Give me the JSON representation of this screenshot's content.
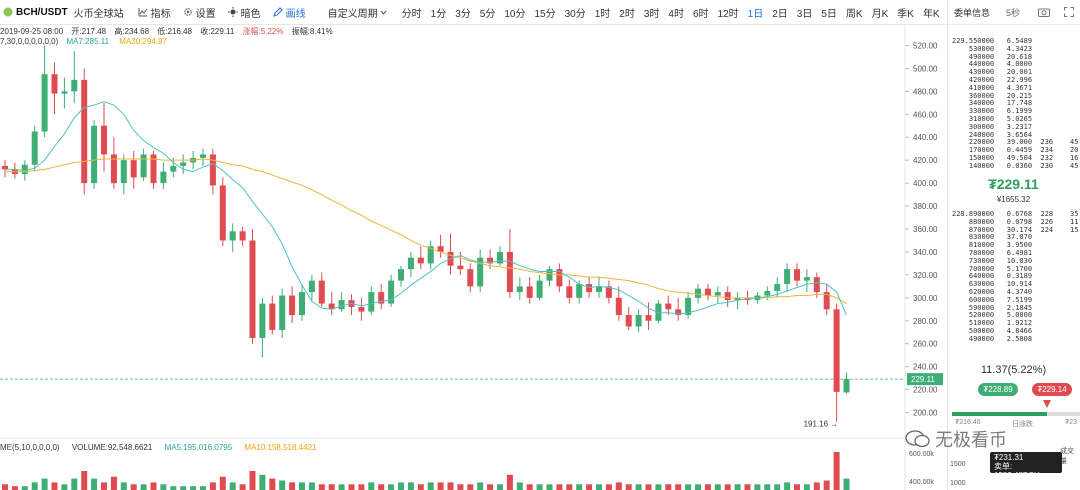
{
  "toolbar": {
    "symbol": "BCH/USDT",
    "exchange": "火币全球站",
    "indicator": "指标",
    "settings": "设置",
    "theme": "暗色",
    "draw": "画线",
    "custom_period": "自定义周期",
    "intervals": [
      "分时",
      "1分",
      "3分",
      "5分",
      "10分",
      "15分",
      "30分",
      "1时",
      "2时",
      "3时",
      "4时",
      "6时",
      "12时",
      "1日",
      "2日",
      "3日",
      "5日",
      "周K",
      "月K",
      "季K",
      "年K"
    ],
    "active_interval": "1日",
    "right_label": "5秒"
  },
  "ohlc": {
    "date": "2019-09-25 08:00",
    "open_label": "开:217.48",
    "high_label": "高:234.68",
    "low_label": "低:216.48",
    "close_label": "收:229.11",
    "change_label": "涨幅:5.22%",
    "amplitude_label": "振幅:8.41%"
  },
  "ma": {
    "params": "7,30,0,0,0,0,0,0)",
    "ma7_label": "MA7:285.11",
    "ma30_label": "MA30:294.97"
  },
  "volume_info": {
    "params": "ME(5,10,0,0,0,0)",
    "volume_label": "VOLUME:92,548.6621",
    "ma5_label": "MA5:195,016.0795",
    "ma10_label": "MA10:158,518.4421"
  },
  "price_axis": {
    "labels": [
      "520.00",
      "500.00",
      "480.00",
      "460.00",
      "440.00",
      "420.00",
      "400.00",
      "380.00",
      "360.00",
      "340.00",
      "320.00",
      "300.00",
      "280.00",
      "260.00",
      "240.00",
      "220.00",
      "200.00"
    ],
    "current_price_tag": "229.11",
    "low_annotation": "191.16 →",
    "volume_axis": [
      "600.00k",
      "400.00k"
    ]
  },
  "chart_data": {
    "type": "candlestick",
    "y_min": 190,
    "y_max": 530,
    "last_price": 229.11,
    "low_marker": 191.16,
    "candles": [
      [
        415,
        420,
        405,
        412
      ],
      [
        412,
        418,
        404,
        408
      ],
      [
        408,
        420,
        402,
        416
      ],
      [
        416,
        450,
        410,
        445
      ],
      [
        445,
        520,
        440,
        495
      ],
      [
        495,
        505,
        460,
        478
      ],
      [
        478,
        492,
        465,
        480
      ],
      [
        480,
        515,
        470,
        490
      ],
      [
        490,
        500,
        390,
        400
      ],
      [
        400,
        455,
        395,
        450
      ],
      [
        450,
        470,
        410,
        425
      ],
      [
        425,
        440,
        395,
        400
      ],
      [
        400,
        425,
        390,
        420
      ],
      [
        420,
        428,
        395,
        405
      ],
      [
        405,
        430,
        402,
        425
      ],
      [
        425,
        428,
        395,
        400
      ],
      [
        400,
        418,
        395,
        410
      ],
      [
        410,
        422,
        405,
        415
      ],
      [
        415,
        425,
        408,
        418
      ],
      [
        418,
        428,
        412,
        422
      ],
      [
        422,
        430,
        415,
        425
      ],
      [
        425,
        430,
        390,
        398
      ],
      [
        398,
        405,
        345,
        350
      ],
      [
        350,
        365,
        340,
        358
      ],
      [
        358,
        362,
        345,
        350
      ],
      [
        350,
        360,
        260,
        265
      ],
      [
        265,
        300,
        248,
        295
      ],
      [
        295,
        302,
        268,
        272
      ],
      [
        272,
        308,
        265,
        302
      ],
      [
        302,
        310,
        278,
        285
      ],
      [
        285,
        312,
        280,
        305
      ],
      [
        305,
        320,
        298,
        315
      ],
      [
        315,
        322,
        292,
        295
      ],
      [
        295,
        305,
        285,
        290
      ],
      [
        290,
        305,
        288,
        298
      ],
      [
        298,
        303,
        285,
        292
      ],
      [
        292,
        300,
        280,
        288
      ],
      [
        288,
        310,
        285,
        305
      ],
      [
        305,
        312,
        290,
        295
      ],
      [
        295,
        320,
        292,
        315
      ],
      [
        315,
        328,
        310,
        325
      ],
      [
        325,
        340,
        318,
        335
      ],
      [
        335,
        345,
        325,
        330
      ],
      [
        330,
        350,
        325,
        345
      ],
      [
        345,
        355,
        335,
        340
      ],
      [
        340,
        356,
        320,
        328
      ],
      [
        328,
        340,
        320,
        325
      ],
      [
        325,
        330,
        305,
        310
      ],
      [
        310,
        342,
        305,
        335
      ],
      [
        335,
        342,
        325,
        330
      ],
      [
        330,
        345,
        328,
        340
      ],
      [
        340,
        360,
        300,
        305
      ],
      [
        305,
        318,
        298,
        310
      ],
      [
        310,
        318,
        295,
        300
      ],
      [
        300,
        320,
        298,
        315
      ],
      [
        315,
        328,
        310,
        325
      ],
      [
        325,
        330,
        305,
        310
      ],
      [
        310,
        316,
        295,
        300
      ],
      [
        300,
        315,
        295,
        312
      ],
      [
        312,
        318,
        300,
        305
      ],
      [
        305,
        318,
        300,
        310
      ],
      [
        310,
        315,
        295,
        300
      ],
      [
        300,
        310,
        280,
        285
      ],
      [
        285,
        292,
        272,
        275
      ],
      [
        275,
        290,
        270,
        285
      ],
      [
        285,
        296,
        272,
        280
      ],
      [
        280,
        298,
        278,
        295
      ],
      [
        295,
        302,
        285,
        290
      ],
      [
        290,
        300,
        280,
        285
      ],
      [
        285,
        305,
        282,
        300
      ],
      [
        300,
        312,
        295,
        308
      ],
      [
        308,
        312,
        298,
        302
      ],
      [
        302,
        310,
        295,
        305
      ],
      [
        305,
        310,
        292,
        298
      ],
      [
        298,
        305,
        290,
        300
      ],
      [
        300,
        306,
        294,
        298
      ],
      [
        298,
        305,
        295,
        302
      ],
      [
        302,
        310,
        298,
        306
      ],
      [
        306,
        318,
        300,
        312
      ],
      [
        312,
        330,
        305,
        325
      ],
      [
        325,
        330,
        310,
        315
      ],
      [
        315,
        325,
        305,
        318
      ],
      [
        318,
        322,
        300,
        305
      ],
      [
        305,
        312,
        285,
        290
      ],
      [
        290,
        295,
        192,
        218
      ],
      [
        217.48,
        234.68,
        216.48,
        229.11
      ]
    ],
    "volumes": [
      0.15,
      0.1,
      0.1,
      0.2,
      0.3,
      0.2,
      0.15,
      0.3,
      0.5,
      0.3,
      0.2,
      0.35,
      0.2,
      0.15,
      0.15,
      0.2,
      0.15,
      0.1,
      0.1,
      0.1,
      0.1,
      0.2,
      0.35,
      0.2,
      0.15,
      0.5,
      0.4,
      0.3,
      0.25,
      0.2,
      0.2,
      0.2,
      0.15,
      0.15,
      0.15,
      0.15,
      0.15,
      0.2,
      0.15,
      0.15,
      0.2,
      0.2,
      0.15,
      0.2,
      0.2,
      0.2,
      0.15,
      0.15,
      0.2,
      0.15,
      0.15,
      0.4,
      0.2,
      0.15,
      0.15,
      0.15,
      0.15,
      0.15,
      0.15,
      0.15,
      0.15,
      0.15,
      0.2,
      0.15,
      0.15,
      0.15,
      0.15,
      0.15,
      0.15,
      0.15,
      0.15,
      0.15,
      0.15,
      0.15,
      0.15,
      0.15,
      0.15,
      0.15,
      0.15,
      0.2,
      0.15,
      0.15,
      0.2,
      0.25,
      1.0,
      0.3
    ],
    "ma7": [
      412,
      412,
      411,
      413,
      420,
      432,
      443,
      457,
      466,
      468,
      471,
      468,
      460,
      446,
      437,
      431,
      426,
      418,
      412,
      410,
      414,
      417,
      411,
      403,
      396,
      384,
      373,
      362,
      347,
      327,
      311,
      297,
      291,
      290,
      293,
      295,
      293,
      295,
      297,
      298,
      304,
      311,
      317,
      323,
      330,
      334,
      337,
      333,
      331,
      331,
      332,
      332,
      328,
      325,
      323,
      323,
      323,
      318,
      312,
      309,
      310,
      309,
      307,
      302,
      297,
      291,
      287,
      287,
      286,
      287,
      289,
      292,
      295,
      296,
      298,
      299,
      300,
      301,
      303,
      306,
      309,
      312,
      313,
      312,
      305,
      285
    ],
    "ma30": [
      410,
      410,
      410,
      411,
      412,
      414,
      416,
      418,
      419,
      420,
      421,
      421,
      421,
      421,
      421,
      421,
      420,
      420,
      420,
      420,
      421,
      420,
      418,
      416,
      415,
      412,
      410,
      407,
      404,
      401,
      398,
      394,
      390,
      385,
      381,
      376,
      372,
      367,
      363,
      359,
      355,
      350,
      346,
      343,
      340,
      337,
      335,
      332,
      330,
      328,
      327,
      326,
      325,
      323,
      322,
      321,
      320,
      320,
      319,
      318,
      318,
      317,
      316,
      315,
      313,
      311,
      308,
      306,
      305,
      304,
      303,
      302,
      301,
      300,
      300,
      300,
      300,
      300,
      301,
      301,
      302,
      302,
      303,
      303,
      300,
      295
    ]
  },
  "orderbook": {
    "title": "委单信息",
    "asks": [
      [
        "229.55",
        "0000",
        "6.5489"
      ],
      [
        "53",
        "0000",
        "4.3423"
      ],
      [
        "49",
        "0000",
        "20.618"
      ],
      [
        "44",
        "0000",
        "4.0000"
      ],
      [
        "43",
        "0000",
        "20.001"
      ],
      [
        "42",
        "0000",
        "22.996"
      ],
      [
        "41",
        "0000",
        "4.3671"
      ],
      [
        "36",
        "0000",
        "20.215"
      ],
      [
        "34",
        "0000",
        "17.748"
      ],
      [
        "33",
        "0000",
        "6.1999"
      ],
      [
        "31",
        "0000",
        "5.0265"
      ],
      [
        "30",
        "0000",
        "3.2317"
      ],
      [
        "24",
        "0000",
        "3.6564"
      ],
      [
        "22",
        "0000",
        "39.000  236    45"
      ],
      [
        "17",
        "0000",
        "0.4459  234    20"
      ],
      [
        "15",
        "0000",
        "49.504  232    16"
      ],
      [
        "14",
        "0000",
        "0.0360  230    45"
      ]
    ],
    "last_price": "₮229.11",
    "last_cny": "¥1655.32",
    "bids": [
      [
        "228.89",
        "0000",
        "0.6768  228    35"
      ],
      [
        "88",
        "0000",
        "0.0798  226    11"
      ],
      [
        "87",
        "0000",
        "30.174  224    15"
      ],
      [
        "83",
        "0000",
        "37.070"
      ],
      [
        "81",
        "0000",
        "3.9500"
      ],
      [
        "78",
        "0000",
        "6.4981"
      ],
      [
        "73",
        "0000",
        "10.030"
      ],
      [
        "70",
        "0000",
        "5.1700"
      ],
      [
        "64",
        "0000",
        "0.3189"
      ],
      [
        "63",
        "0000",
        "10.914"
      ],
      [
        "62",
        "0000",
        "4.3740"
      ],
      [
        "60",
        "0000",
        "7.5199"
      ],
      [
        "59",
        "0000",
        "2.1845"
      ],
      [
        "52",
        "0000",
        "5.0000"
      ],
      [
        "51",
        "0000",
        "1.9212"
      ],
      [
        "50",
        "0000",
        "4.8466"
      ],
      [
        "49",
        "0000",
        "2.5808"
      ]
    ],
    "change": "11.37(5.22%)",
    "best_bid": "₮228.89",
    "best_ask": "₮229.14",
    "range_low": "₮216.48",
    "range_label": "日涨跌",
    "range_high": "₮23",
    "range_fill": 0.74,
    "vol_label": "成交量",
    "vol_axis": "1500",
    "vol_axis2": "1000"
  },
  "tooltip": {
    "price": "₮231.31",
    "text": "卖单: 1583.48BCH"
  },
  "watermark": "无极看币",
  "colors": {
    "up": "#3eae75",
    "down": "#e04b52",
    "ma7": "#4fc3c3",
    "ma30": "#f0b43a",
    "accent": "#1e6fd9"
  }
}
